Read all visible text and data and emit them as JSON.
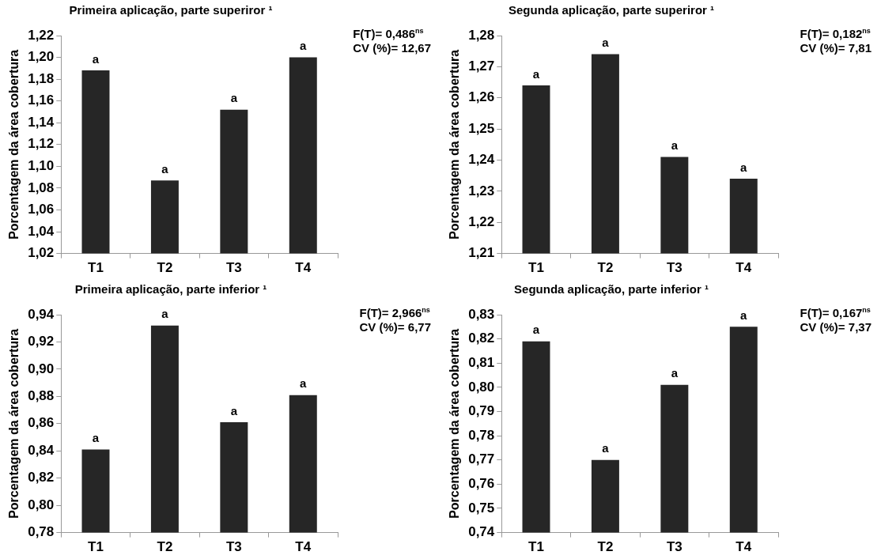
{
  "chart_data": [
    {
      "type": "bar",
      "title": "Primeira aplicação, parte superiror ¹",
      "ylabel": "Porcentagem da área cobertura",
      "categories": [
        "T1",
        "T2",
        "T3",
        "T4"
      ],
      "values": [
        1.188,
        1.087,
        1.152,
        1.2
      ],
      "color": "#262626",
      "value_labels": [
        "a",
        "a",
        "a",
        "a"
      ],
      "ylim": [
        1.02,
        1.22
      ],
      "yticks": [
        {
          "value": 1.02,
          "label": "1,02"
        },
        {
          "value": 1.04,
          "label": "1,04"
        },
        {
          "value": 1.06,
          "label": "1,06"
        },
        {
          "value": 1.08,
          "label": "1,08"
        },
        {
          "value": 1.1,
          "label": "1,10"
        },
        {
          "value": 1.12,
          "label": "1,12"
        },
        {
          "value": 1.14,
          "label": "1,14"
        },
        {
          "value": 1.16,
          "label": "1,16"
        },
        {
          "value": 1.18,
          "label": "1,18"
        },
        {
          "value": 1.2,
          "label": "1,20"
        },
        {
          "value": 1.22,
          "label": "1,22"
        }
      ],
      "annotations": [
        "F(T)= 0,486$^{ns}$",
        "CV (%)= 12,67"
      ]
    },
    {
      "type": "bar",
      "title": "Segunda aplicação, parte superiror ¹",
      "ylabel": "Porcentagem da área cobertura",
      "categories": [
        "T1",
        "T2",
        "T3",
        "T4"
      ],
      "values": [
        1.264,
        1.274,
        1.241,
        1.234
      ],
      "color": "#262626",
      "value_labels": [
        "a",
        "a",
        "a",
        "a"
      ],
      "ylim": [
        1.21,
        1.28
      ],
      "yticks": [
        {
          "value": 1.21,
          "label": "1,21"
        },
        {
          "value": 1.22,
          "label": "1,22"
        },
        {
          "value": 1.23,
          "label": "1,23"
        },
        {
          "value": 1.24,
          "label": "1,24"
        },
        {
          "value": 1.25,
          "label": "1,25"
        },
        {
          "value": 1.26,
          "label": "1,26"
        },
        {
          "value": 1.27,
          "label": "1,27"
        },
        {
          "value": 1.28,
          "label": "1,28"
        }
      ],
      "annotations": [
        "F(T)= 0,182$^{ns}$",
        "CV (%)= 7,81"
      ]
    },
    {
      "type": "bar",
      "title": "Primeira aplicação, parte inferior ¹",
      "ylabel": "Porcentagem da área cobertura",
      "categories": [
        "T1",
        "T2",
        "T3",
        "T4"
      ],
      "values": [
        0.841,
        0.932,
        0.861,
        0.881
      ],
      "color": "#262626",
      "value_labels": [
        "a",
        "a",
        "a",
        "a"
      ],
      "ylim": [
        0.78,
        0.94
      ],
      "yticks": [
        {
          "value": 0.78,
          "label": "0,78"
        },
        {
          "value": 0.8,
          "label": "0,80"
        },
        {
          "value": 0.82,
          "label": "0,82"
        },
        {
          "value": 0.84,
          "label": "0,84"
        },
        {
          "value": 0.86,
          "label": "0,86"
        },
        {
          "value": 0.88,
          "label": "0,88"
        },
        {
          "value": 0.9,
          "label": "0,90"
        },
        {
          "value": 0.92,
          "label": "0,92"
        },
        {
          "value": 0.94,
          "label": "0,94"
        }
      ],
      "annotations": [
        "F(T)= 2,966$^{ns}$",
        "CV (%)= 6,77"
      ]
    },
    {
      "type": "bar",
      "title": "Segunda aplicação, parte inferior ¹",
      "ylabel": "Porcentagem da área cobertura",
      "categories": [
        "T1",
        "T2",
        "T3",
        "T4"
      ],
      "values": [
        0.819,
        0.77,
        0.801,
        0.825
      ],
      "color": "#262626",
      "value_labels": [
        "a",
        "a",
        "a",
        "a"
      ],
      "ylim": [
        0.74,
        0.83
      ],
      "yticks": [
        {
          "value": 0.74,
          "label": "0,74"
        },
        {
          "value": 0.75,
          "label": "0,75"
        },
        {
          "value": 0.76,
          "label": "0,76"
        },
        {
          "value": 0.77,
          "label": "0,77"
        },
        {
          "value": 0.78,
          "label": "0,78"
        },
        {
          "value": 0.79,
          "label": "0,79"
        },
        {
          "value": 0.8,
          "label": "0,80"
        },
        {
          "value": 0.81,
          "label": "0,81"
        },
        {
          "value": 0.82,
          "label": "0,82"
        },
        {
          "value": 0.83,
          "label": "0,83"
        }
      ],
      "annotations": [
        "F(T)= 0,167$^{ns}$",
        "CV (%)= 7,37"
      ]
    }
  ]
}
